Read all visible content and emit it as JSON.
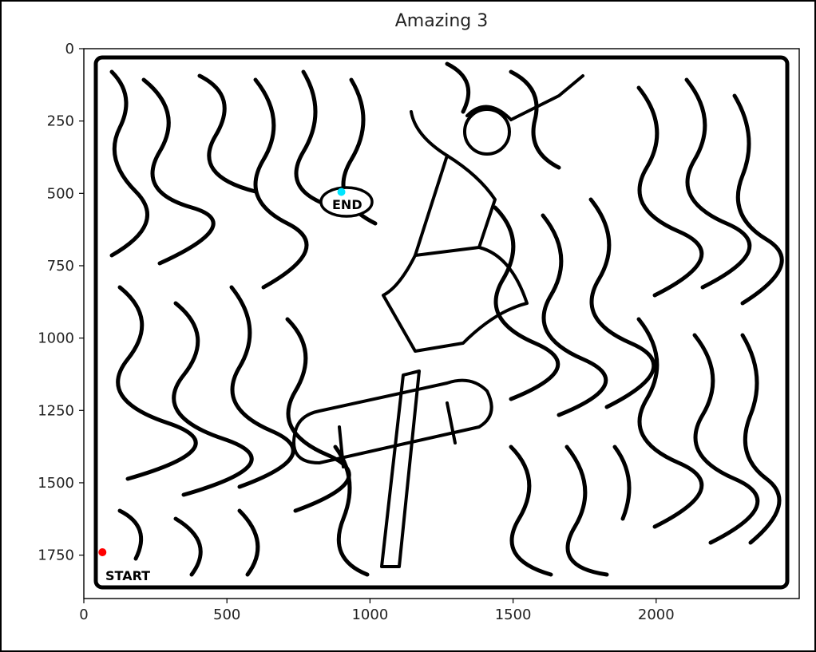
{
  "title": "Amazing 3",
  "labels": {
    "start": "START",
    "end": "END"
  },
  "colors": {
    "start_marker": "#ff0000",
    "end_marker": "#00e5ff",
    "maze_ink": "#000000"
  },
  "chart_data": {
    "type": "scatter",
    "title": "Amazing 3",
    "xlim": [
      0,
      2500
    ],
    "ylim": [
      1900,
      0
    ],
    "x_ticks": [
      0,
      500,
      1000,
      1500,
      2000
    ],
    "y_ticks": [
      0,
      250,
      500,
      750,
      1000,
      1250,
      1500,
      1750
    ],
    "series": [
      {
        "name": "",
        "x": [
          65
        ],
        "y": [
          1740
        ],
        "color": "#ff0000"
      },
      {
        "name": "",
        "x": [
          900
        ],
        "y": [
          495
        ],
        "color": "#00e5ff"
      }
    ]
  }
}
